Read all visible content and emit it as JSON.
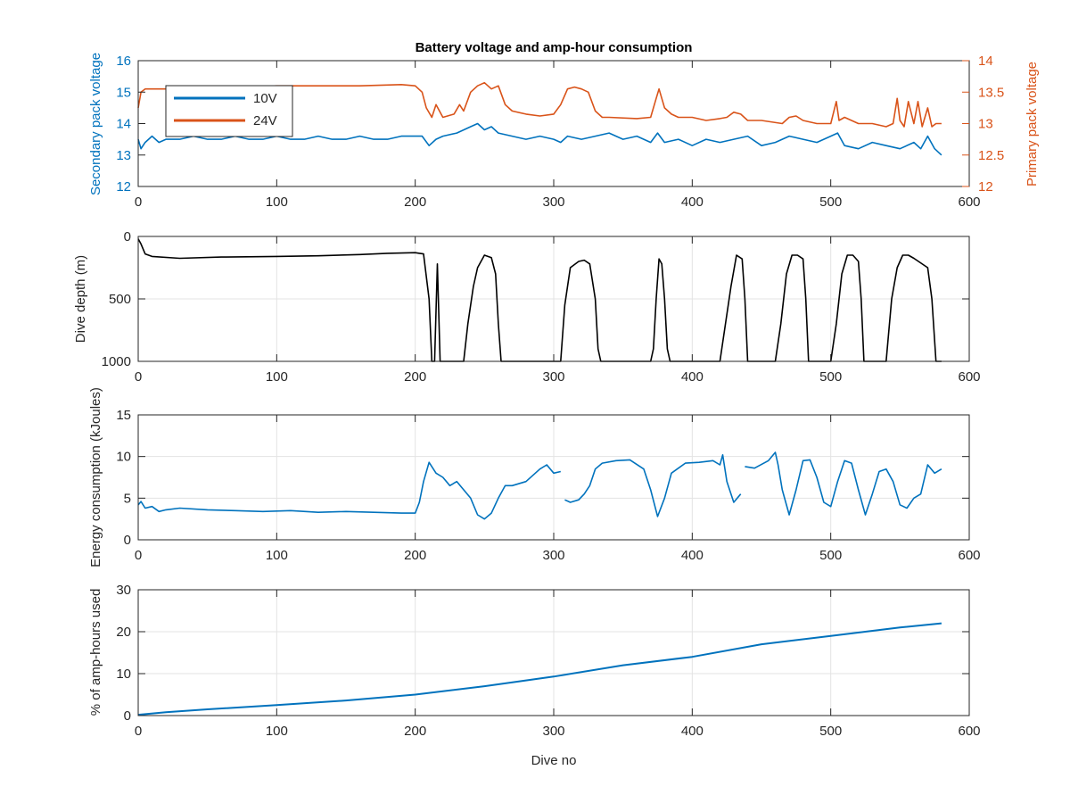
{
  "colors": {
    "blue": "#0072BD",
    "orange": "#D95319",
    "black": "#000000",
    "grid": "#e3e3e3",
    "axis": "#262626"
  },
  "chart_data": [
    {
      "type": "line",
      "title": "Battery voltage and amp-hour consumption",
      "xlabel": "",
      "ylabel_left": "Secondary pack voltage",
      "ylabel_right": "Primary pack voltage",
      "xlim": [
        0,
        600
      ],
      "ylim_left": [
        12,
        16
      ],
      "ylim_right": [
        12,
        14
      ],
      "xticks": [
        "0",
        "100",
        "200",
        "300",
        "400",
        "500",
        "600"
      ],
      "yticks_left": [
        "12",
        "13",
        "14",
        "15",
        "16"
      ],
      "yticks_right": [
        "12",
        "12.5",
        "13",
        "13.5",
        "14"
      ],
      "grid": false,
      "legend": {
        "placement": "top-left",
        "entries": [
          "10V",
          "24V"
        ]
      },
      "series": [
        {
          "name": "10V",
          "axis": "left",
          "color": "blue",
          "x": [
            0,
            2,
            5,
            10,
            15,
            20,
            30,
            40,
            50,
            60,
            70,
            80,
            90,
            100,
            110,
            120,
            130,
            140,
            150,
            160,
            170,
            180,
            190,
            200,
            205,
            210,
            215,
            220,
            230,
            240,
            245,
            250,
            255,
            260,
            270,
            280,
            290,
            300,
            305,
            310,
            320,
            330,
            340,
            350,
            360,
            370,
            375,
            380,
            390,
            400,
            410,
            420,
            430,
            440,
            450,
            460,
            470,
            480,
            490,
            500,
            505,
            510,
            520,
            530,
            540,
            550,
            560,
            565,
            570,
            575,
            580
          ],
          "values": [
            13.5,
            13.2,
            13.4,
            13.6,
            13.4,
            13.5,
            13.5,
            13.6,
            13.5,
            13.5,
            13.6,
            13.5,
            13.5,
            13.6,
            13.5,
            13.5,
            13.6,
            13.5,
            13.5,
            13.6,
            13.5,
            13.5,
            13.6,
            13.6,
            13.6,
            13.3,
            13.5,
            13.6,
            13.7,
            13.9,
            14.0,
            13.8,
            13.9,
            13.7,
            13.6,
            13.5,
            13.6,
            13.5,
            13.4,
            13.6,
            13.5,
            13.6,
            13.7,
            13.5,
            13.6,
            13.4,
            13.7,
            13.4,
            13.5,
            13.3,
            13.5,
            13.4,
            13.5,
            13.6,
            13.3,
            13.4,
            13.6,
            13.5,
            13.4,
            13.6,
            13.7,
            13.3,
            13.2,
            13.4,
            13.3,
            13.2,
            13.4,
            13.2,
            13.6,
            13.2,
            13.0
          ]
        },
        {
          "name": "24V",
          "axis": "right",
          "color": "orange",
          "x": [
            0,
            2,
            5,
            20,
            50,
            80,
            100,
            130,
            160,
            190,
            200,
            205,
            208,
            212,
            215,
            220,
            228,
            232,
            235,
            240,
            245,
            250,
            255,
            260,
            265,
            270,
            280,
            290,
            300,
            305,
            310,
            315,
            320,
            325,
            330,
            335,
            340,
            360,
            370,
            374,
            376,
            378,
            380,
            385,
            390,
            400,
            410,
            420,
            425,
            430,
            435,
            440,
            450,
            465,
            470,
            475,
            480,
            490,
            500,
            504,
            506,
            510,
            520,
            530,
            540,
            545,
            548,
            550,
            553,
            556,
            560,
            563,
            566,
            570,
            573,
            576,
            580
          ],
          "values": [
            13.25,
            13.5,
            13.55,
            13.55,
            13.58,
            13.58,
            13.6,
            13.6,
            13.6,
            13.62,
            13.6,
            13.5,
            13.25,
            13.1,
            13.3,
            13.1,
            13.15,
            13.3,
            13.2,
            13.5,
            13.6,
            13.65,
            13.55,
            13.6,
            13.3,
            13.2,
            13.15,
            13.12,
            13.15,
            13.3,
            13.55,
            13.58,
            13.55,
            13.5,
            13.2,
            13.1,
            13.1,
            13.08,
            13.1,
            13.4,
            13.55,
            13.4,
            13.25,
            13.15,
            13.1,
            13.1,
            13.05,
            13.08,
            13.1,
            13.18,
            13.15,
            13.05,
            13.05,
            13.0,
            13.1,
            13.12,
            13.05,
            13.0,
            13.0,
            13.35,
            13.05,
            13.1,
            13.0,
            13.0,
            12.95,
            13.0,
            13.4,
            13.05,
            12.95,
            13.35,
            13.0,
            13.35,
            12.95,
            13.25,
            12.95,
            13.0,
            13.0
          ]
        }
      ]
    },
    {
      "type": "line",
      "title": "",
      "xlabel": "",
      "ylabel": "Dive depth (m)",
      "xlim": [
        0,
        600
      ],
      "ylim": [
        0,
        1000
      ],
      "y_reversed": true,
      "xticks": [
        "0",
        "100",
        "200",
        "300",
        "400",
        "500",
        "600"
      ],
      "yticks": [
        "0",
        "500",
        "1000"
      ],
      "grid": true,
      "series": [
        {
          "color": "black",
          "x": [
            0,
            2,
            5,
            10,
            30,
            60,
            100,
            130,
            160,
            180,
            200,
            203,
            206,
            210,
            212,
            214,
            216,
            218,
            220,
            225,
            235,
            238,
            242,
            245,
            250,
            255,
            258,
            260,
            262,
            270,
            290,
            300,
            305,
            308,
            312,
            318,
            322,
            326,
            330,
            332,
            334,
            340,
            360,
            370,
            372,
            374,
            376,
            378,
            380,
            382,
            384,
            390,
            420,
            424,
            428,
            432,
            436,
            438,
            440,
            450,
            460,
            464,
            468,
            472,
            476,
            480,
            482,
            484,
            490,
            500,
            504,
            508,
            512,
            516,
            520,
            522,
            524,
            540,
            544,
            548,
            552,
            556,
            560,
            570,
            573,
            576,
            578,
            580
          ],
          "values": [
            20,
            60,
            140,
            160,
            175,
            165,
            160,
            155,
            145,
            135,
            130,
            135,
            140,
            500,
            1000,
            1000,
            220,
            1000,
            1000,
            1000,
            1000,
            700,
            400,
            250,
            150,
            170,
            300,
            700,
            1000,
            1000,
            1000,
            1000,
            1000,
            550,
            250,
            200,
            190,
            220,
            500,
            900,
            1000,
            1000,
            1000,
            1000,
            900,
            500,
            180,
            220,
            500,
            900,
            1000,
            1000,
            1000,
            700,
            400,
            150,
            180,
            500,
            1000,
            1000,
            1000,
            700,
            300,
            150,
            150,
            180,
            500,
            1000,
            1000,
            1000,
            700,
            300,
            150,
            150,
            200,
            500,
            1000,
            1000,
            500,
            250,
            150,
            150,
            175,
            250,
            500,
            1000,
            1000,
            1000
          ]
        }
      ]
    },
    {
      "type": "line",
      "title": "",
      "xlabel": "",
      "ylabel": "Energy consumption (kJoules)",
      "xlim": [
        0,
        600
      ],
      "ylim": [
        0,
        15
      ],
      "xticks": [
        "0",
        "100",
        "200",
        "300",
        "400",
        "500",
        "600"
      ],
      "yticks": [
        "0",
        "5",
        "10",
        "15"
      ],
      "grid": true,
      "series": [
        {
          "color": "blue",
          "x": [
            0,
            2,
            5,
            10,
            15,
            20,
            30,
            50,
            70,
            90,
            110,
            130,
            150,
            170,
            190,
            200,
            203,
            206,
            210,
            215,
            220,
            225,
            230,
            240,
            245,
            250,
            255,
            260,
            265,
            270,
            280,
            290,
            295,
            300,
            305,
            null,
            308,
            312,
            318,
            322,
            326,
            330,
            335,
            345,
            355,
            365,
            370,
            375,
            380,
            385,
            395,
            405,
            415,
            420,
            422,
            425,
            430,
            435,
            null,
            438,
            445,
            455,
            460,
            462,
            465,
            470,
            475,
            480,
            485,
            490,
            495,
            500,
            505,
            510,
            515,
            520,
            525,
            530,
            535,
            540,
            545,
            550,
            555,
            560,
            565,
            570,
            575,
            580
          ],
          "values": [
            4.2,
            4.6,
            3.8,
            4.0,
            3.4,
            3.6,
            3.8,
            3.6,
            3.5,
            3.4,
            3.5,
            3.3,
            3.4,
            3.3,
            3.2,
            3.2,
            4.5,
            7.0,
            9.3,
            8.0,
            7.5,
            6.5,
            7.0,
            5.0,
            3.0,
            2.5,
            3.2,
            5.0,
            6.5,
            6.5,
            7.0,
            8.5,
            9.0,
            8.0,
            8.2,
            null,
            4.8,
            4.5,
            4.8,
            5.5,
            6.5,
            8.5,
            9.2,
            9.5,
            9.6,
            8.5,
            6.0,
            2.8,
            5.0,
            8.0,
            9.2,
            9.3,
            9.5,
            9.0,
            10.2,
            7.0,
            4.5,
            5.5,
            null,
            8.8,
            8.6,
            9.5,
            10.5,
            9.0,
            6.0,
            3.0,
            6.0,
            9.5,
            9.6,
            7.5,
            4.5,
            4.0,
            7.0,
            9.5,
            9.2,
            6.0,
            3.0,
            5.5,
            8.2,
            8.5,
            7.0,
            4.2,
            3.8,
            5.0,
            5.5,
            9.0,
            8.0,
            8.5
          ]
        }
      ]
    },
    {
      "type": "line",
      "title": "",
      "xlabel": "Dive no",
      "ylabel": "% of amp-hours used",
      "xlim": [
        0,
        600
      ],
      "ylim": [
        0,
        30
      ],
      "xticks": [
        "0",
        "100",
        "200",
        "300",
        "400",
        "500",
        "600"
      ],
      "yticks": [
        "0",
        "10",
        "20",
        "30"
      ],
      "grid": true,
      "series": [
        {
          "color": "blue",
          "x": [
            0,
            20,
            50,
            100,
            150,
            200,
            250,
            300,
            350,
            400,
            450,
            500,
            550,
            580
          ],
          "values": [
            0.2,
            0.8,
            1.5,
            2.5,
            3.6,
            5.0,
            7.0,
            9.3,
            12.0,
            14.0,
            17.0,
            19.0,
            21.0,
            22.0
          ]
        }
      ]
    }
  ]
}
